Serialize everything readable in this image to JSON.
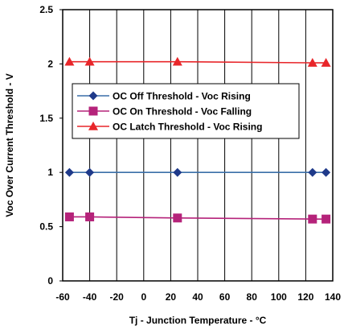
{
  "chart_data": {
    "type": "line",
    "xlabel": "Tj - Junction Temperature -  °C",
    "ylabel": "Voc Over Current Threshold - V",
    "xlim": [
      -60,
      140
    ],
    "ylim": [
      0,
      2.5
    ],
    "x_ticks": [
      "-60",
      "-40",
      "-20",
      "0",
      "20",
      "40",
      "60",
      "80",
      "100",
      "120",
      "140"
    ],
    "x_tick_values": [
      -60,
      -40,
      -20,
      0,
      20,
      40,
      60,
      80,
      100,
      120,
      140
    ],
    "y_ticks": [
      "0",
      "0.5",
      "1",
      "1.5",
      "2",
      "2.5"
    ],
    "y_tick_values": [
      0,
      0.5,
      1,
      1.5,
      2,
      2.5
    ],
    "grid": "vertical",
    "legend_position": "center-left",
    "series": [
      {
        "name": "OC Off Threshold - Voc Rising",
        "color": "#1f3a8a",
        "line_color": "#3a6fa8",
        "marker": "diamond",
        "x": [
          -55,
          -40,
          25,
          125,
          135
        ],
        "y": [
          1.0,
          1.0,
          1.0,
          1.0,
          1.0
        ]
      },
      {
        "name": "OC On Threshold - Voc Falling",
        "color": "#b5237a",
        "line_color": "#b5237a",
        "marker": "square",
        "x": [
          -55,
          -40,
          25,
          125,
          135
        ],
        "y": [
          0.59,
          0.59,
          0.58,
          0.57,
          0.57
        ]
      },
      {
        "name": "OC Latch Threshold - Voc Rising",
        "color": "#e8262a",
        "line_color": "#e8262a",
        "marker": "triangle",
        "x": [
          -55,
          -40,
          25,
          125,
          135
        ],
        "y": [
          2.02,
          2.02,
          2.02,
          2.01,
          2.01
        ]
      }
    ]
  }
}
